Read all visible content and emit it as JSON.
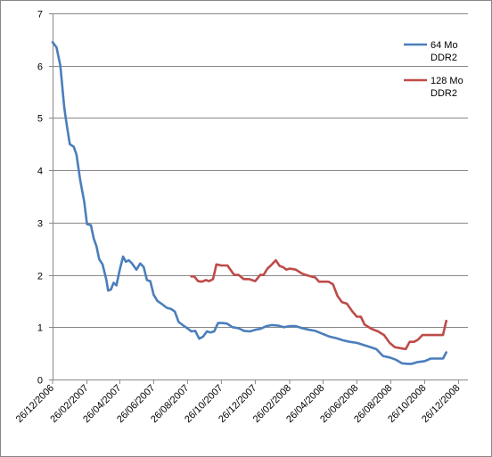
{
  "chart_data": {
    "type": "line",
    "title": "",
    "xlabel": "",
    "ylabel": "",
    "ylim": [
      0,
      7
    ],
    "yticks": [
      "0",
      "1",
      "2",
      "3",
      "4",
      "5",
      "6",
      "7"
    ],
    "xticks": [
      "26/12/2006",
      "26/02/2007",
      "26/04/2007",
      "26/06/2007",
      "26/08/2007",
      "26/10/2007",
      "26/12/2007",
      "26/02/2008",
      "26/04/2008",
      "26/06/2008",
      "26/08/2008",
      "26/10/2008",
      "26/12/2008"
    ],
    "grid": true,
    "legend_position": "top-right",
    "series": [
      {
        "name": "64 Mo DDR2",
        "color": "#4a7ebb",
        "points": [
          [
            "2006-12-26",
            6.45
          ],
          [
            "2007-01-02",
            6.35
          ],
          [
            "2007-01-09",
            6.0
          ],
          [
            "2007-01-16",
            5.2
          ],
          [
            "2007-01-20",
            4.9
          ],
          [
            "2007-01-26",
            4.5
          ],
          [
            "2007-02-02",
            4.45
          ],
          [
            "2007-02-07",
            4.3
          ],
          [
            "2007-02-14",
            3.8
          ],
          [
            "2007-02-21",
            3.4
          ],
          [
            "2007-02-26",
            2.97
          ],
          [
            "2007-03-05",
            2.95
          ],
          [
            "2007-03-10",
            2.7
          ],
          [
            "2007-03-15",
            2.55
          ],
          [
            "2007-03-20",
            2.3
          ],
          [
            "2007-03-26",
            2.2
          ],
          [
            "2007-04-02",
            1.9
          ],
          [
            "2007-04-05",
            1.7
          ],
          [
            "2007-04-10",
            1.72
          ],
          [
            "2007-04-15",
            1.85
          ],
          [
            "2007-04-20",
            1.8
          ],
          [
            "2007-04-26",
            2.1
          ],
          [
            "2007-05-02",
            2.35
          ],
          [
            "2007-05-07",
            2.25
          ],
          [
            "2007-05-12",
            2.28
          ],
          [
            "2007-05-18",
            2.22
          ],
          [
            "2007-05-26",
            2.1
          ],
          [
            "2007-06-02",
            2.22
          ],
          [
            "2007-06-08",
            2.15
          ],
          [
            "2007-06-14",
            1.9
          ],
          [
            "2007-06-20",
            1.88
          ],
          [
            "2007-06-26",
            1.62
          ],
          [
            "2007-07-03",
            1.5
          ],
          [
            "2007-07-10",
            1.45
          ],
          [
            "2007-07-20",
            1.37
          ],
          [
            "2007-07-27",
            1.35
          ],
          [
            "2007-08-03",
            1.3
          ],
          [
            "2007-08-10",
            1.1
          ],
          [
            "2007-08-20",
            1.02
          ],
          [
            "2007-08-27",
            0.97
          ],
          [
            "2007-09-02",
            0.92
          ],
          [
            "2007-09-09",
            0.93
          ],
          [
            "2007-09-16",
            0.78
          ],
          [
            "2007-09-23",
            0.82
          ],
          [
            "2007-09-30",
            0.92
          ],
          [
            "2007-10-06",
            0.9
          ],
          [
            "2007-10-13",
            0.92
          ],
          [
            "2007-10-20",
            1.08
          ],
          [
            "2007-10-27",
            1.08
          ],
          [
            "2007-11-05",
            1.07
          ],
          [
            "2007-11-15",
            1.0
          ],
          [
            "2007-11-26",
            0.98
          ],
          [
            "2007-12-06",
            0.93
          ],
          [
            "2007-12-16",
            0.92
          ],
          [
            "2007-12-26",
            0.95
          ],
          [
            "2008-01-05",
            0.97
          ],
          [
            "2008-01-15",
            1.02
          ],
          [
            "2008-01-25",
            1.04
          ],
          [
            "2008-02-05",
            1.03
          ],
          [
            "2008-02-15",
            1.0
          ],
          [
            "2008-02-26",
            1.02
          ],
          [
            "2008-03-08",
            1.02
          ],
          [
            "2008-03-20",
            0.98
          ],
          [
            "2008-04-01",
            0.95
          ],
          [
            "2008-04-12",
            0.93
          ],
          [
            "2008-04-26",
            0.87
          ],
          [
            "2008-05-08",
            0.82
          ],
          [
            "2008-05-20",
            0.79
          ],
          [
            "2008-06-01",
            0.75
          ],
          [
            "2008-06-13",
            0.72
          ],
          [
            "2008-06-26",
            0.7
          ],
          [
            "2008-07-08",
            0.66
          ],
          [
            "2008-07-20",
            0.62
          ],
          [
            "2008-07-31",
            0.58
          ],
          [
            "2008-08-12",
            0.45
          ],
          [
            "2008-08-24",
            0.42
          ],
          [
            "2008-09-04",
            0.38
          ],
          [
            "2008-09-15",
            0.31
          ],
          [
            "2008-09-26",
            0.3
          ],
          [
            "2008-10-03",
            0.3
          ],
          [
            "2008-10-12",
            0.33
          ],
          [
            "2008-10-26",
            0.35
          ],
          [
            "2008-11-06",
            0.4
          ],
          [
            "2008-11-18",
            0.4
          ],
          [
            "2008-11-28",
            0.4
          ],
          [
            "2008-12-04",
            0.52
          ]
        ]
      },
      {
        "name": "128 Mo DDR2",
        "color": "#be4b48",
        "points": [
          [
            "2007-09-02",
            1.97
          ],
          [
            "2007-09-07",
            1.97
          ],
          [
            "2007-09-14",
            1.88
          ],
          [
            "2007-09-21",
            1.87
          ],
          [
            "2007-09-28",
            1.9
          ],
          [
            "2007-10-04",
            1.88
          ],
          [
            "2007-10-11",
            1.92
          ],
          [
            "2007-10-17",
            2.2
          ],
          [
            "2007-10-26",
            2.18
          ],
          [
            "2007-11-06",
            2.18
          ],
          [
            "2007-11-18",
            2.0
          ],
          [
            "2007-11-26",
            2.0
          ],
          [
            "2007-12-05",
            1.92
          ],
          [
            "2007-12-15",
            1.92
          ],
          [
            "2007-12-26",
            1.88
          ],
          [
            "2008-01-04",
            2.0
          ],
          [
            "2008-01-10",
            2.0
          ],
          [
            "2008-01-17",
            2.12
          ],
          [
            "2008-01-25",
            2.2
          ],
          [
            "2008-02-01",
            2.28
          ],
          [
            "2008-02-08",
            2.17
          ],
          [
            "2008-02-14",
            2.15
          ],
          [
            "2008-02-20",
            2.1
          ],
          [
            "2008-02-26",
            2.12
          ],
          [
            "2008-03-08",
            2.1
          ],
          [
            "2008-03-20",
            2.02
          ],
          [
            "2008-04-01",
            1.98
          ],
          [
            "2008-04-12",
            1.95
          ],
          [
            "2008-04-19",
            1.87
          ],
          [
            "2008-04-26",
            1.87
          ],
          [
            "2008-05-06",
            1.87
          ],
          [
            "2008-05-14",
            1.82
          ],
          [
            "2008-05-22",
            1.6
          ],
          [
            "2008-05-30",
            1.48
          ],
          [
            "2008-06-08",
            1.45
          ],
          [
            "2008-06-18",
            1.3
          ],
          [
            "2008-06-26",
            1.2
          ],
          [
            "2008-07-03",
            1.2
          ],
          [
            "2008-07-10",
            1.05
          ],
          [
            "2008-07-22",
            0.97
          ],
          [
            "2008-08-03",
            0.92
          ],
          [
            "2008-08-14",
            0.85
          ],
          [
            "2008-08-24",
            0.7
          ],
          [
            "2008-09-02",
            0.62
          ],
          [
            "2008-09-12",
            0.6
          ],
          [
            "2008-09-22",
            0.58
          ],
          [
            "2008-09-29",
            0.72
          ],
          [
            "2008-10-07",
            0.72
          ],
          [
            "2008-10-14",
            0.76
          ],
          [
            "2008-10-22",
            0.85
          ],
          [
            "2008-11-01",
            0.85
          ],
          [
            "2008-11-12",
            0.85
          ],
          [
            "2008-11-28",
            0.85
          ],
          [
            "2008-12-04",
            1.12
          ]
        ]
      }
    ]
  }
}
